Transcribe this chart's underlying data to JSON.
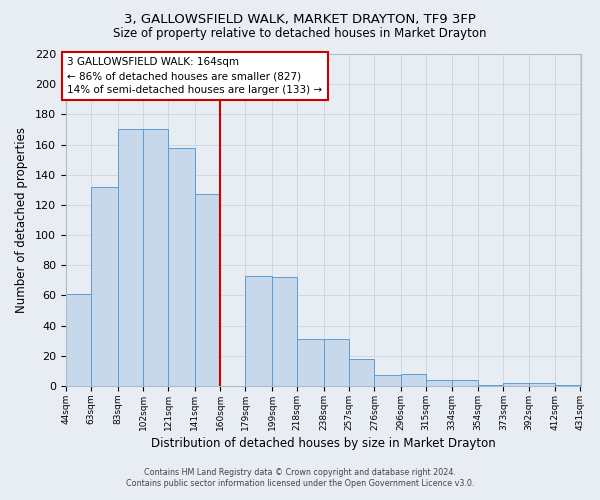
{
  "title": "3, GALLOWSFIELD WALK, MARKET DRAYTON, TF9 3FP",
  "subtitle": "Size of property relative to detached houses in Market Drayton",
  "xlabel": "Distribution of detached houses by size in Market Drayton",
  "ylabel": "Number of detached properties",
  "bar_values": [
    61,
    132,
    170,
    170,
    158,
    127,
    0,
    73,
    72,
    31,
    31,
    18,
    7,
    8,
    4,
    4,
    1,
    2,
    2,
    1
  ],
  "bin_edges": [
    44,
    63,
    83,
    102,
    121,
    141,
    160,
    179,
    199,
    218,
    238,
    257,
    276,
    296,
    315,
    334,
    354,
    373,
    392,
    412,
    431
  ],
  "bin_labels": [
    "44sqm",
    "63sqm",
    "83sqm",
    "102sqm",
    "121sqm",
    "141sqm",
    "160sqm",
    "179sqm",
    "199sqm",
    "218sqm",
    "238sqm",
    "257sqm",
    "276sqm",
    "296sqm",
    "315sqm",
    "334sqm",
    "354sqm",
    "373sqm",
    "392sqm",
    "412sqm",
    "431sqm"
  ],
  "bar_color": "#c8d8eb",
  "bar_edge_color": "#5b9bd5",
  "property_line_x": 160,
  "property_line_color": "#cc0000",
  "annotation_line1": "3 GALLOWSFIELD WALK: 164sqm",
  "annotation_line2": "← 86% of detached houses are smaller (827)",
  "annotation_line3": "14% of semi-detached houses are larger (133) →",
  "annotation_box_facecolor": "#ffffff",
  "annotation_box_edgecolor": "#cc0000",
  "ylim": [
    0,
    220
  ],
  "yticks": [
    0,
    20,
    40,
    60,
    80,
    100,
    120,
    140,
    160,
    180,
    200,
    220
  ],
  "grid_color": "#c8d4de",
  "background_color": "#e8edf3",
  "footer_line1": "Contains HM Land Registry data © Crown copyright and database right 2024.",
  "footer_line2": "Contains public sector information licensed under the Open Government Licence v3.0."
}
